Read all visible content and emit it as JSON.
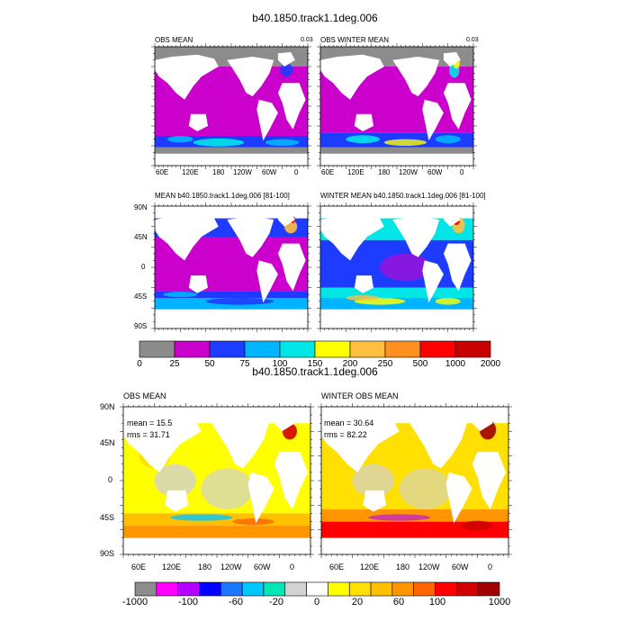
{
  "figure_titles": [
    "b40.1850.track1.1deg.006",
    "b40.1850.track1.1deg.006"
  ],
  "top": {
    "panels": [
      {
        "title": "OBS MEAN",
        "value": "0.03"
      },
      {
        "title": "OBS WINTER MEAN",
        "value": "0.03"
      },
      {
        "title": "MEAN b40.1850.track1.1deg.006 [81-100]",
        "value": ""
      },
      {
        "title": "WINTER MEAN b40.1850.track1.1deg.006 [81-100]",
        "value": ""
      }
    ],
    "lon_ticks": [
      "60E",
      "120E",
      "180",
      "120W",
      "60W",
      "0"
    ],
    "lat_ticks": [
      "90N",
      "45N",
      "0",
      "45S",
      "90S"
    ],
    "colorbar": {
      "labels": [
        "0",
        "25",
        "50",
        "75",
        "100",
        "150",
        "200",
        "250",
        "500",
        "1000",
        "2000"
      ],
      "colors": [
        "#8c8c8c",
        "#cc00cc",
        "#1e3cff",
        "#00b4ff",
        "#00e6e6",
        "#ffff00",
        "#ffc040",
        "#ff9020",
        "#ff0000",
        "#c80000"
      ]
    }
  },
  "bottom": {
    "panels": [
      {
        "title": "OBS MEAN",
        "mean": "mean = 15.5",
        "rms": "rms = 31.71"
      },
      {
        "title": "WINTER OBS MEAN",
        "mean": "mean = 30.64",
        "rms": "rms = 82.22"
      }
    ],
    "lon_ticks": [
      "60E",
      "120E",
      "180",
      "120W",
      "60W",
      "0"
    ],
    "lat_ticks": [
      "90N",
      "45N",
      "0",
      "45S",
      "90S"
    ],
    "colorbar": {
      "labels": [
        "-1000",
        "-100",
        "-60",
        "-20",
        "0",
        "20",
        "60",
        "100",
        "1000"
      ],
      "colors": [
        "#8c8c8c",
        "#ff00ff",
        "#b400ff",
        "#0000ff",
        "#1e78ff",
        "#00c8ff",
        "#00e6b4",
        "#d2d2d2",
        "#ffffff",
        "#ffff00",
        "#ffe000",
        "#ffc000",
        "#ff9600",
        "#ff6400",
        "#ff0000",
        "#d20000",
        "#a00000"
      ]
    }
  },
  "chart_data": [
    {
      "type": "heatmap",
      "title": "OBS MEAN",
      "value_label": "0.03",
      "xlabel": "",
      "ylabel": "",
      "x_ticks": [
        "60E",
        "120E",
        "180",
        "120W",
        "60W",
        "0"
      ],
      "levels": [
        0,
        25,
        50,
        75,
        100,
        150,
        200,
        250,
        500,
        1000,
        2000
      ]
    },
    {
      "type": "heatmap",
      "title": "OBS WINTER MEAN",
      "value_label": "0.03",
      "xlabel": "",
      "ylabel": "",
      "x_ticks": [
        "60E",
        "120E",
        "180",
        "120W",
        "60W",
        "0"
      ],
      "levels": [
        0,
        25,
        50,
        75,
        100,
        150,
        200,
        250,
        500,
        1000,
        2000
      ]
    },
    {
      "type": "heatmap",
      "title": "MEAN b40.1850.track1.1deg.006 [81-100]",
      "xlabel": "",
      "ylabel": "",
      "y_ticks": [
        "90N",
        "45N",
        "0",
        "45S",
        "90S"
      ],
      "levels": [
        0,
        25,
        50,
        75,
        100,
        150,
        200,
        250,
        500,
        1000,
        2000
      ]
    },
    {
      "type": "heatmap",
      "title": "WINTER MEAN b40.1850.track1.1deg.006 [81-100]",
      "xlabel": "",
      "ylabel": "",
      "levels": [
        0,
        25,
        50,
        75,
        100,
        150,
        200,
        250,
        500,
        1000,
        2000
      ]
    },
    {
      "type": "heatmap",
      "title": "OBS MEAN",
      "xlabel": "",
      "ylabel": "",
      "x_ticks": [
        "60E",
        "120E",
        "180",
        "120W",
        "60W",
        "0"
      ],
      "y_ticks": [
        "90N",
        "45N",
        "0",
        "45S",
        "90S"
      ],
      "stats": {
        "mean": 15.5,
        "rms": 31.71
      },
      "levels": [
        -1000,
        -100,
        -60,
        -20,
        0,
        20,
        60,
        100,
        1000
      ]
    },
    {
      "type": "heatmap",
      "title": "WINTER OBS MEAN",
      "xlabel": "",
      "ylabel": "",
      "x_ticks": [
        "60E",
        "120E",
        "180",
        "120W",
        "60W",
        "0"
      ],
      "stats": {
        "mean": 30.64,
        "rms": 82.22
      },
      "levels": [
        -1000,
        -100,
        -60,
        -20,
        0,
        20,
        60,
        100,
        1000
      ]
    }
  ]
}
